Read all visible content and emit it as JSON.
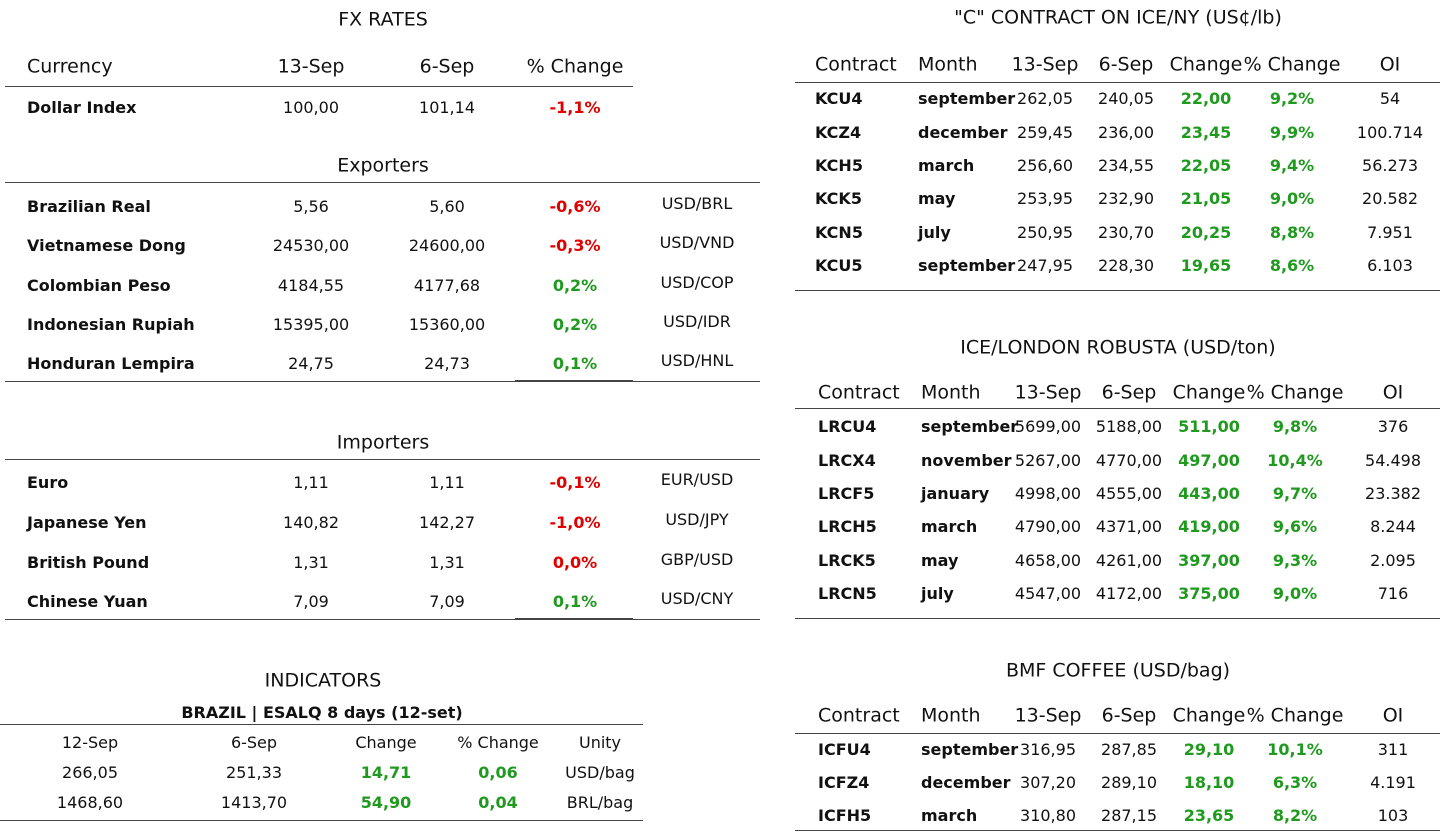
{
  "fx_rates": {
    "title": "FX RATES",
    "header": [
      "Currency",
      "13-Sep",
      "6-Sep",
      "% Change"
    ],
    "rows": [
      [
        "Dollar Index",
        "100,00",
        "101,14",
        "-1,1%"
      ]
    ],
    "change_colors": [
      "#e00000"
    ]
  },
  "exporters": {
    "title": "Exporters",
    "rows": [
      [
        "Brazilian Real",
        "5,56",
        "5,60",
        "-0,6%",
        "USD/BRL"
      ],
      [
        "Vietnamese Dong",
        "24530,00",
        "24600,00",
        "-0,3%",
        "USD/VND"
      ],
      [
        "Colombian Peso",
        "4184,55",
        "4177,68",
        "0,2%",
        "USD/COP"
      ],
      [
        "Indonesian Rupiah",
        "15395,00",
        "15360,00",
        "0,2%",
        "USD/IDR"
      ],
      [
        "Honduran Lempira",
        "24,75",
        "24,73",
        "0,1%",
        "USD/HNL"
      ]
    ],
    "change_colors": [
      "#e00000",
      "#e00000",
      "#1f9a1f",
      "#1f9a1f",
      "#1f9a1f"
    ]
  },
  "importers": {
    "title": "Importers",
    "rows": [
      [
        "Euro",
        "1,11",
        "1,11",
        "-0,1%",
        "EUR/USD"
      ],
      [
        "Japanese Yen",
        "140,82",
        "142,27",
        "-1,0%",
        "USD/JPY"
      ],
      [
        "British Pound",
        "1,31",
        "1,31",
        "0,0%",
        "GBP/USD"
      ],
      [
        "Chinese Yuan",
        "7,09",
        "7,09",
        "0,1%",
        "USD/CNY"
      ]
    ],
    "change_colors": [
      "#e00000",
      "#e00000",
      "#e00000",
      "#1f9a1f"
    ]
  },
  "indicators": {
    "title": "INDICATORS",
    "subtitle": "BRAZIL | ESALQ 8 days (12-set)",
    "header": [
      "12-Sep",
      "6-Sep",
      "Change",
      "% Change",
      "Unity"
    ],
    "rows": [
      [
        "266,05",
        "251,33",
        "14,71",
        "0,06",
        "USD/bag"
      ],
      [
        "1468,60",
        "1413,70",
        "54,90",
        "0,04",
        "BRL/bag"
      ]
    ],
    "change_color": "#1f9a1f"
  },
  "ice_ny": {
    "title": "\"C\" CONTRACT ON ICE/NY (US¢/lb)",
    "header": [
      "Contract",
      "Month",
      "13-Sep",
      "6-Sep",
      "Change",
      "% Change",
      "OI"
    ],
    "rows": [
      [
        "KCU4",
        "september",
        "262,05",
        "240,05",
        "22,00",
        "9,2%",
        "54"
      ],
      [
        "KCZ4",
        "december",
        "259,45",
        "236,00",
        "23,45",
        "9,9%",
        "100.714"
      ],
      [
        "KCH5",
        "march",
        "256,60",
        "234,55",
        "22,05",
        "9,4%",
        "56.273"
      ],
      [
        "KCK5",
        "may",
        "253,95",
        "232,90",
        "21,05",
        "9,0%",
        "20.582"
      ],
      [
        "KCN5",
        "july",
        "250,95",
        "230,70",
        "20,25",
        "8,8%",
        "7.951"
      ],
      [
        "KCU5",
        "september",
        "247,95",
        "228,30",
        "19,65",
        "8,6%",
        "6.103"
      ]
    ],
    "change_color": "#1f9a1f"
  },
  "ice_london": {
    "title": "ICE/LONDON ROBUSTA (USD/ton)",
    "header": [
      "Contract",
      "Month",
      "13-Sep",
      "6-Sep",
      "Change",
      "% Change",
      "OI"
    ],
    "rows": [
      [
        "LRCU4",
        "september",
        "5699,00",
        "5188,00",
        "511,00",
        "9,8%",
        "376"
      ],
      [
        "LRCX4",
        "november",
        "5267,00",
        "4770,00",
        "497,00",
        "10,4%",
        "54.498"
      ],
      [
        "LRCF5",
        "january",
        "4998,00",
        "4555,00",
        "443,00",
        "9,7%",
        "23.382"
      ],
      [
        "LRCH5",
        "march",
        "4790,00",
        "4371,00",
        "419,00",
        "9,6%",
        "8.244"
      ],
      [
        "LRCK5",
        "may",
        "4658,00",
        "4261,00",
        "397,00",
        "9,3%",
        "2.095"
      ],
      [
        "LRCN5",
        "july",
        "4547,00",
        "4172,00",
        "375,00",
        "9,0%",
        "716"
      ]
    ],
    "change_color": "#1f9a1f"
  },
  "bmf": {
    "title": "BMF COFFEE (USD/bag)",
    "header": [
      "Contract",
      "Month",
      "13-Sep",
      "6-Sep",
      "Change",
      "% Change",
      "OI"
    ],
    "rows": [
      [
        "ICFU4",
        "september",
        "316,95",
        "287,85",
        "29,10",
        "10,1%",
        "311"
      ],
      [
        "ICFZ4",
        "december",
        "307,20",
        "289,10",
        "18,10",
        "6,3%",
        "4.191"
      ],
      [
        "ICFH5",
        "march",
        "310,80",
        "287,15",
        "23,65",
        "8,2%",
        "103"
      ]
    ],
    "change_color": "#1f9a1f"
  }
}
